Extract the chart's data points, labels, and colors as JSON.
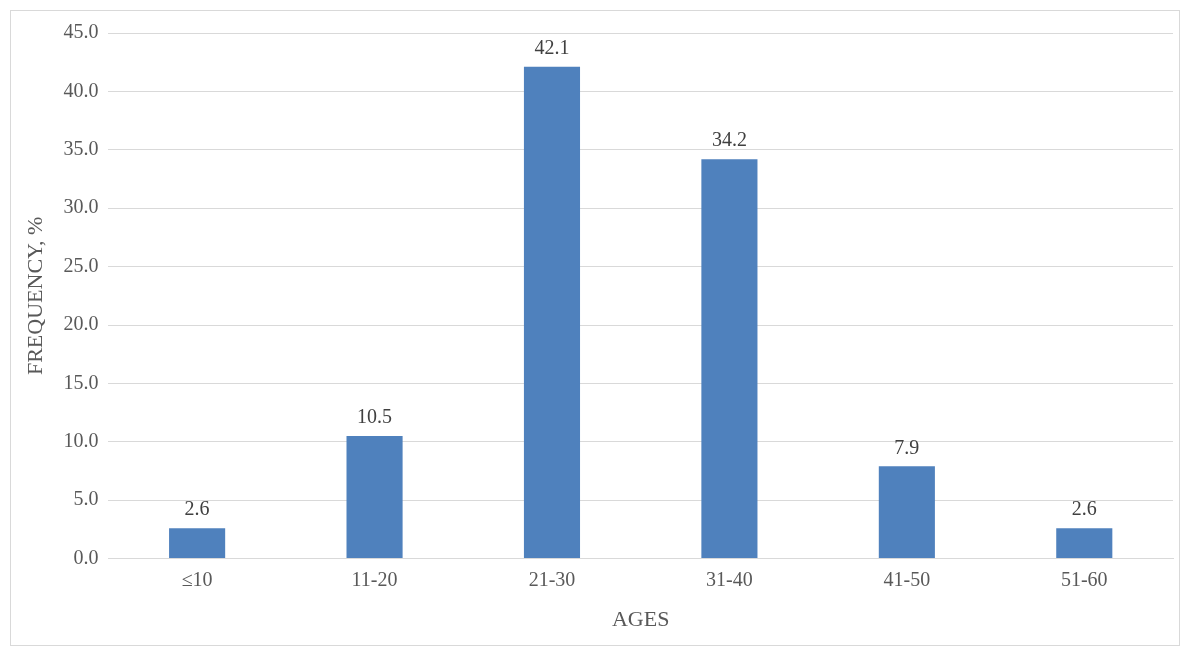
{
  "chart_data": {
    "type": "bar",
    "xlabel": "AGES",
    "ylabel": "FREQUENCY, %",
    "categories": [
      "≤10",
      "11-20",
      "21-30",
      "31-40",
      "41-50",
      "51-60"
    ],
    "values": [
      2.6,
      10.5,
      42.1,
      34.2,
      7.9,
      2.6
    ],
    "color": "#4f81bd",
    "ylim": [
      0,
      45
    ],
    "yticks": [
      {
        "value": 0,
        "label": "0.0"
      },
      {
        "value": 5,
        "label": "5.0"
      },
      {
        "value": 10,
        "label": "10.0"
      },
      {
        "value": 15,
        "label": "15.0"
      },
      {
        "value": 20,
        "label": "20.0"
      },
      {
        "value": 25,
        "label": "25.0"
      },
      {
        "value": 30,
        "label": "30.0"
      },
      {
        "value": 35,
        "label": "35.0"
      },
      {
        "value": 40,
        "label": "40.0"
      },
      {
        "value": 45,
        "label": "45.0"
      }
    ],
    "grid": "y",
    "data_labels": true,
    "legend": false
  }
}
